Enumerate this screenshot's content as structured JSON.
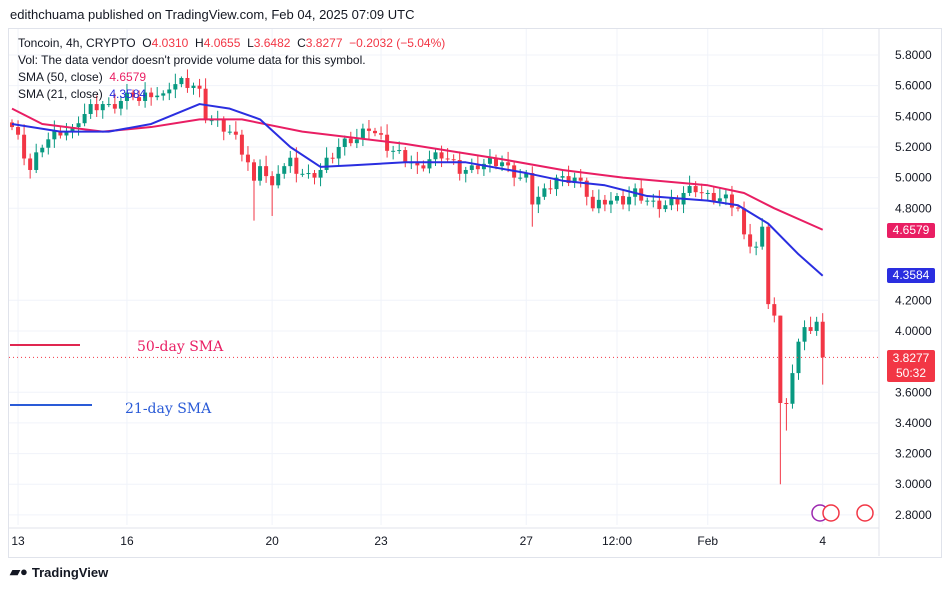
{
  "header": {
    "published": "edithchuama published on TradingView.com, Feb 04, 2025 07:09 UTC"
  },
  "legend": {
    "symbol": "Toncoin, 4h, CRYPTO",
    "o_label": "O",
    "o": "4.0310",
    "h_label": "H",
    "h": "4.0655",
    "l_label": "L",
    "l": "3.6482",
    "c_label": "C",
    "c": "3.8277",
    "change": "−0.2032 (−5.04%)",
    "vol": "Vol: The data vendor doesn't provide volume data for this symbol.",
    "sma50_label": "SMA (50, close)",
    "sma50": "4.6579",
    "sma21_label": "SMA (21, close)",
    "sma21": "4.3584"
  },
  "annotations": {
    "sma50": "50-day SMA",
    "sma21": "21-day SMA"
  },
  "tags": {
    "sma50": "4.6579",
    "sma21": "4.3584",
    "last": "3.8277",
    "countdown": "50:32"
  },
  "footer": {
    "logo": "TradingView"
  },
  "colors": {
    "up": "#089981",
    "down": "#f23645",
    "sma50": "#e91e63",
    "sma21": "#2a2ee0"
  },
  "chart_data": {
    "type": "candlestick",
    "ylim": [
      2.7,
      5.95
    ],
    "yticks": [
      "5.8000",
      "5.6000",
      "5.4000",
      "5.2000",
      "5.0000",
      "4.8000",
      "4.2000",
      "4.0000",
      "3.6000",
      "3.4000",
      "3.2000",
      "3.0000",
      "2.8000"
    ],
    "xticks": [
      {
        "label": "13",
        "i": 1
      },
      {
        "label": "16",
        "i": 19
      },
      {
        "label": "20",
        "i": 43
      },
      {
        "label": "23",
        "i": 61
      },
      {
        "label": "27",
        "i": 85
      },
      {
        "label": "12:00",
        "i": 100
      },
      {
        "label": "Feb",
        "i": 115
      },
      {
        "label": "4",
        "i": 134
      }
    ],
    "close_waypoints": [
      [
        0,
        5.33
      ],
      [
        1,
        5.25
      ],
      [
        3,
        5.05
      ],
      [
        5,
        5.22
      ],
      [
        6,
        5.25
      ],
      [
        8,
        5.3
      ],
      [
        10,
        5.3
      ],
      [
        11,
        5.38
      ],
      [
        13,
        5.45
      ],
      [
        15,
        5.48
      ],
      [
        16,
        5.45
      ],
      [
        18,
        5.5
      ],
      [
        20,
        5.55
      ],
      [
        21,
        5.5
      ],
      [
        23,
        5.55
      ],
      [
        25,
        5.52
      ],
      [
        26,
        5.6
      ],
      [
        28,
        5.62
      ],
      [
        30,
        5.6
      ],
      [
        31,
        5.55
      ],
      [
        32,
        5.4
      ],
      [
        34,
        5.35
      ],
      [
        36,
        5.3
      ],
      [
        37,
        5.25
      ],
      [
        39,
        5.1
      ],
      [
        40,
        4.95
      ],
      [
        41,
        5.1
      ],
      [
        43,
        4.92
      ],
      [
        44,
        5.05
      ],
      [
        46,
        5.1
      ],
      [
        47,
        5.05
      ],
      [
        49,
        5.0
      ],
      [
        51,
        5.05
      ],
      [
        52,
        5.1
      ],
      [
        54,
        5.2
      ],
      [
        56,
        5.25
      ],
      [
        57,
        5.25
      ],
      [
        59,
        5.33
      ],
      [
        61,
        5.25
      ],
      [
        62,
        5.2
      ],
      [
        64,
        5.15
      ],
      [
        66,
        5.1
      ],
      [
        67,
        5.05
      ],
      [
        69,
        5.12
      ],
      [
        71,
        5.15
      ],
      [
        72,
        5.12
      ],
      [
        74,
        5.05
      ],
      [
        76,
        5.05
      ],
      [
        77,
        5.08
      ],
      [
        79,
        5.1
      ],
      [
        81,
        5.1
      ],
      [
        82,
        5.05
      ],
      [
        84,
        5.0
      ],
      [
        85,
        5.0
      ],
      [
        86,
        4.85
      ],
      [
        88,
        4.9
      ],
      [
        90,
        5.0
      ],
      [
        91,
        4.98
      ],
      [
        93,
        5.0
      ],
      [
        95,
        4.9
      ],
      [
        96,
        4.8
      ],
      [
        98,
        4.85
      ],
      [
        100,
        4.85
      ],
      [
        101,
        4.85
      ],
      [
        103,
        4.9
      ],
      [
        105,
        4.85
      ],
      [
        106,
        4.82
      ],
      [
        108,
        4.82
      ],
      [
        110,
        4.85
      ],
      [
        111,
        4.9
      ],
      [
        113,
        4.93
      ],
      [
        115,
        4.87
      ],
      [
        116,
        4.87
      ],
      [
        118,
        4.86
      ],
      [
        120,
        4.8
      ],
      [
        121,
        4.6
      ],
      [
        123,
        4.55
      ],
      [
        124,
        4.65
      ],
      [
        125,
        4.2
      ],
      [
        126,
        4.1
      ],
      [
        127,
        3.5
      ],
      [
        128,
        3.55
      ],
      [
        130,
        3.9
      ],
      [
        131,
        4.05
      ],
      [
        132,
        4.0
      ],
      [
        133,
        4.03
      ],
      [
        134,
        3.83
      ]
    ],
    "sma50": [
      [
        0,
        5.45
      ],
      [
        5,
        5.35
      ],
      [
        15,
        5.3
      ],
      [
        23,
        5.33
      ],
      [
        31,
        5.38
      ],
      [
        38,
        5.38
      ],
      [
        48,
        5.3
      ],
      [
        65,
        5.22
      ],
      [
        81,
        5.12
      ],
      [
        91,
        5.05
      ],
      [
        101,
        5.0
      ],
      [
        115,
        4.95
      ],
      [
        121,
        4.9
      ],
      [
        126,
        4.8
      ],
      [
        134,
        4.66
      ]
    ],
    "sma21": [
      [
        0,
        5.35
      ],
      [
        8,
        5.3
      ],
      [
        16,
        5.3
      ],
      [
        23,
        5.35
      ],
      [
        31,
        5.48
      ],
      [
        36,
        5.45
      ],
      [
        41,
        5.38
      ],
      [
        46,
        5.2
      ],
      [
        51,
        5.07
      ],
      [
        56,
        5.08
      ],
      [
        65,
        5.1
      ],
      [
        75,
        5.1
      ],
      [
        85,
        5.03
      ],
      [
        91,
        4.98
      ],
      [
        98,
        4.95
      ],
      [
        105,
        4.88
      ],
      [
        115,
        4.85
      ],
      [
        120,
        4.82
      ],
      [
        125,
        4.7
      ],
      [
        130,
        4.5
      ],
      [
        134,
        4.36
      ]
    ],
    "last": 3.8277
  }
}
